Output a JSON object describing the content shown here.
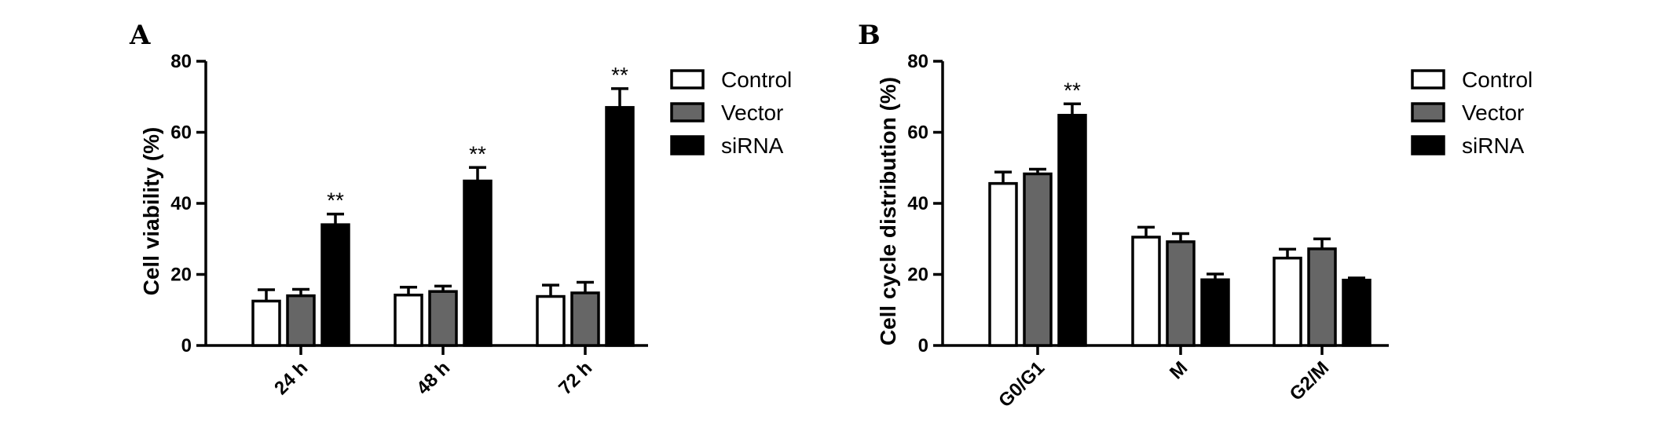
{
  "chart_data": [
    {
      "panel": "A",
      "type": "bar",
      "ylabel": "Cell viability (%)",
      "xlabel": "",
      "ylim": [
        0,
        80
      ],
      "yticks": [
        "0",
        "20",
        "40",
        "60",
        "80"
      ],
      "ytick_values": [
        0,
        20,
        40,
        60,
        80
      ],
      "categories": [
        "24 h",
        "48 h",
        "72 h"
      ],
      "legend_position": "top-right",
      "series": [
        {
          "name": "Control",
          "color": "#ffffff",
          "values": [
            12.5,
            14.2,
            13.8
          ],
          "errors": [
            3.2,
            2.2,
            3.2
          ],
          "sig": [
            "",
            "",
            ""
          ]
        },
        {
          "name": "Vector",
          "color": "#666666",
          "values": [
            14.0,
            15.2,
            14.8
          ],
          "errors": [
            1.8,
            1.5,
            3.0
          ],
          "sig": [
            "",
            "",
            ""
          ]
        },
        {
          "name": "siRNA",
          "color": "#000000",
          "values": [
            34.0,
            46.3,
            67.0
          ],
          "errors": [
            3.0,
            3.8,
            5.3
          ],
          "sig": [
            "**",
            "**",
            "**"
          ]
        }
      ]
    },
    {
      "panel": "B",
      "type": "bar",
      "ylabel": "Cell cycle distribution (%)",
      "xlabel": "",
      "ylim": [
        0,
        80
      ],
      "yticks": [
        "0",
        "20",
        "40",
        "60",
        "80"
      ],
      "ytick_values": [
        0,
        20,
        40,
        60,
        80
      ],
      "categories": [
        "G0/G1",
        "M",
        "G2/M"
      ],
      "legend_position": "top-right",
      "series": [
        {
          "name": "Control",
          "color": "#ffffff",
          "values": [
            45.6,
            30.5,
            24.6
          ],
          "errors": [
            3.2,
            2.8,
            2.5
          ],
          "sig": [
            "",
            "",
            ""
          ]
        },
        {
          "name": "Vector",
          "color": "#666666",
          "values": [
            48.3,
            29.2,
            27.2
          ],
          "errors": [
            1.3,
            2.3,
            2.8
          ],
          "sig": [
            "",
            "",
            ""
          ]
        },
        {
          "name": "siRNA",
          "color": "#000000",
          "values": [
            64.8,
            18.5,
            18.4
          ],
          "errors": [
            3.2,
            1.6,
            0.6
          ],
          "sig": [
            "**",
            "",
            ""
          ]
        }
      ]
    }
  ]
}
